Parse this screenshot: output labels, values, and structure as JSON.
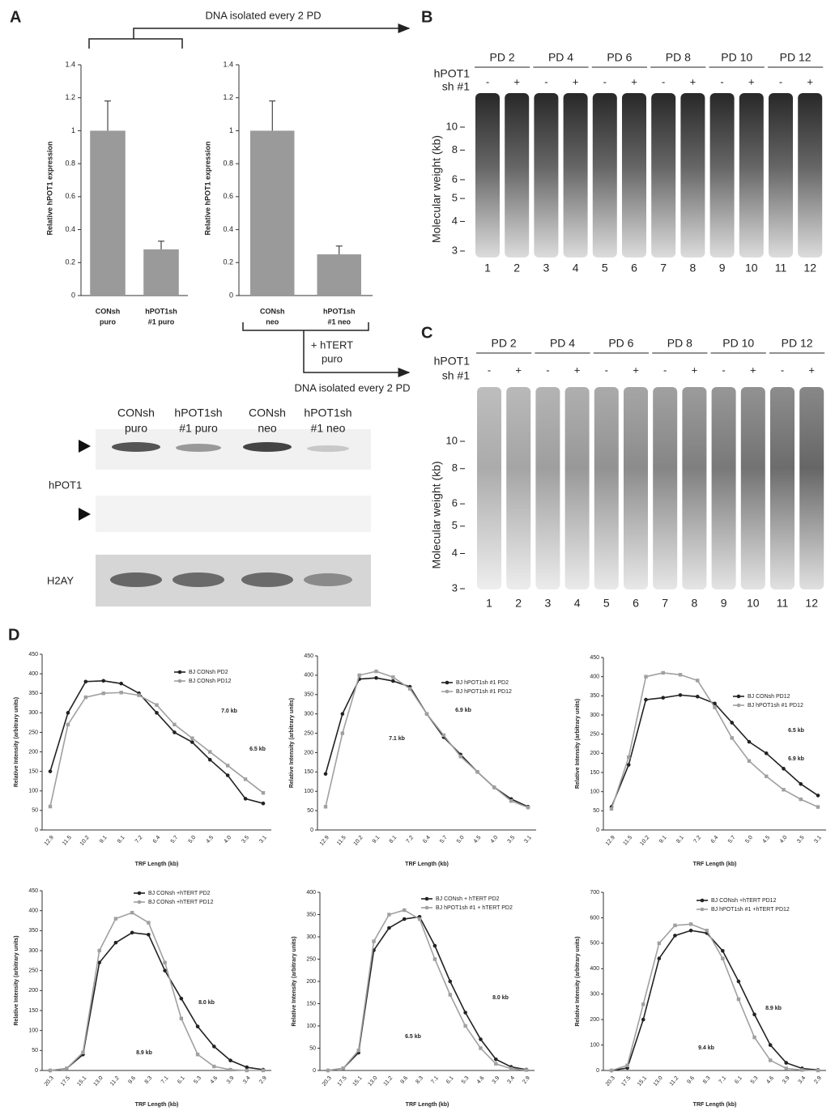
{
  "panel_labels": [
    "A",
    "B",
    "C",
    "D"
  ],
  "panel_a": {
    "top_arrow": "DNA isolated every 2 PD",
    "treatment": [
      "+ hTERT",
      "puro"
    ],
    "bottom_arrow": "DNA isolated every 2 PD"
  },
  "western": {
    "columns": [
      [
        "CONsh",
        "puro"
      ],
      [
        "hPOT1sh",
        "#1 puro"
      ],
      [
        "CONsh",
        "neo"
      ],
      [
        "hPOT1sh",
        "#1 neo"
      ]
    ],
    "rows": [
      "hPOT1",
      "H2AY"
    ]
  },
  "gels": [
    {
      "pd_labels": [
        "PD 2",
        "PD 4",
        "PD 6",
        "PD 8",
        "PD 10",
        "PD 12"
      ],
      "row_labels": [
        "hPOT1",
        "sh #1"
      ],
      "signs": [
        "-",
        "+"
      ],
      "lanes": [
        "1",
        "2",
        "3",
        "4",
        "5",
        "6",
        "7",
        "8",
        "9",
        "10",
        "11",
        "12"
      ],
      "axis_title": "Molecular weight (kb)",
      "markers": [
        10,
        8,
        6,
        5,
        4,
        3
      ]
    },
    {
      "pd_labels": [
        "PD 2",
        "PD 4",
        "PD 6",
        "PD 8",
        "PD 10",
        "PD 12"
      ],
      "row_labels": [
        "hPOT1",
        "sh #1"
      ],
      "signs": [
        "-",
        "+"
      ],
      "lanes": [
        "1",
        "2",
        "3",
        "4",
        "5",
        "6",
        "7",
        "8",
        "9",
        "10",
        "11",
        "12"
      ],
      "axis_title": "Molecular weight (kb)",
      "markers": [
        10,
        8,
        6,
        5,
        4,
        3
      ]
    }
  ],
  "chart_data": [
    {
      "type": "bar",
      "y_label": "Relative hPOT1 expression",
      "categories": [
        [
          "CONsh",
          "puro"
        ],
        [
          "hPOT1sh",
          "#1 puro"
        ]
      ],
      "values": [
        1,
        0.28
      ],
      "error": [
        0.18,
        0.05
      ],
      "color": "#9a9a9a",
      "ylim": [
        0,
        1.4
      ],
      "yticks": [
        0,
        0.2,
        0.4,
        0.6,
        0.8,
        1,
        1.2,
        1.4
      ]
    },
    {
      "type": "bar",
      "y_label": "Relative hPOT1 expression",
      "categories": [
        [
          "CONsh",
          "neo"
        ],
        [
          "hPOT1sh",
          "#1 neo"
        ]
      ],
      "values": [
        1,
        0.25
      ],
      "error": [
        0.18,
        0.05
      ],
      "color": "#9a9a9a",
      "ylim": [
        0,
        1.4
      ],
      "yticks": [
        0,
        0.2,
        0.4,
        0.6,
        0.8,
        1,
        1.2,
        1.4
      ]
    },
    {
      "type": "line",
      "y_label": "Relative Intensity (arbitrary units)",
      "x_label": "TRF Length (kb)",
      "categories": [
        "12.9",
        "11.5",
        "10.2",
        "9.1",
        "8.1",
        "7.2",
        "6.4",
        "5.7",
        "5.0",
        "4.5",
        "4.0",
        "3.5",
        "3.1"
      ],
      "ylim": [
        0,
        450
      ],
      "yticks": [
        0,
        50,
        100,
        150,
        200,
        250,
        300,
        350,
        400,
        450
      ],
      "annotations": [
        "7.0 kb",
        "6.5 kb"
      ],
      "series": [
        {
          "name": "BJ CONsh PD2",
          "color": "#222222",
          "values": [
            150,
            300,
            380,
            382,
            375,
            350,
            300,
            250,
            225,
            180,
            140,
            80,
            68
          ]
        },
        {
          "name": "BJ CONsh PD12",
          "color": "#a0a0a0",
          "values": [
            60,
            270,
            340,
            350,
            352,
            345,
            320,
            270,
            235,
            200,
            165,
            130,
            95
          ]
        }
      ]
    },
    {
      "type": "line",
      "y_label": "Relative Intensity (arbitrary units)",
      "x_label": "TRF Length (kb)",
      "categories": [
        "12.9",
        "11.5",
        "10.2",
        "9.1",
        "8.1",
        "7.2",
        "6.4",
        "5.7",
        "5.0",
        "4.5",
        "4.0",
        "3.5",
        "3.1"
      ],
      "ylim": [
        0,
        450
      ],
      "yticks": [
        0,
        50,
        100,
        150,
        200,
        250,
        300,
        350,
        400,
        450
      ],
      "annotations": [
        "7.1 kb",
        "6.9 kb"
      ],
      "series": [
        {
          "name": "BJ hPOT1sh #1 PD2",
          "color": "#222222",
          "values": [
            145,
            300,
            390,
            393,
            385,
            370,
            300,
            240,
            195,
            150,
            110,
            80,
            60
          ]
        },
        {
          "name": "BJ hPOT1sh #1 PD12",
          "color": "#a0a0a0",
          "values": [
            60,
            250,
            400,
            410,
            395,
            365,
            300,
            245,
            190,
            150,
            110,
            75,
            58
          ]
        }
      ]
    },
    {
      "type": "line",
      "y_label": "Relative Intensity (arbitrary units)",
      "x_label": "TRF Length (kb)",
      "categories": [
        "12.9",
        "11.5",
        "10.2",
        "9.1",
        "8.1",
        "7.2",
        "6.4",
        "5.7",
        "5.0",
        "4.5",
        "4.0",
        "3.5",
        "3.1"
      ],
      "ylim": [
        0,
        450
      ],
      "yticks": [
        0,
        50,
        100,
        150,
        200,
        250,
        300,
        350,
        400,
        450
      ],
      "annotations": [
        "6.5 kb",
        "6.9 kb"
      ],
      "series": [
        {
          "name": "BJ CONsh PD12",
          "color": "#222222",
          "values": [
            60,
            170,
            340,
            345,
            352,
            348,
            330,
            280,
            230,
            200,
            160,
            120,
            90
          ]
        },
        {
          "name": "BJ hPOT1sh #1 PD12",
          "color": "#a0a0a0",
          "values": [
            55,
            190,
            400,
            410,
            405,
            390,
            320,
            240,
            180,
            140,
            105,
            80,
            60
          ]
        }
      ]
    },
    {
      "type": "line",
      "y_label": "Relative Intensity (arbitrary units)",
      "x_label": "TRF Length (kb)",
      "categories": [
        "20.3",
        "17.5",
        "15.1",
        "13.0",
        "11.2",
        "9.6",
        "8.3",
        "7.1",
        "6.1",
        "5.3",
        "4.6",
        "3.9",
        "3.4",
        "2.9"
      ],
      "ylim": [
        0,
        450
      ],
      "yticks": [
        0,
        50,
        100,
        150,
        200,
        250,
        300,
        350,
        400,
        450
      ],
      "annotations": [
        "8.0 kb",
        "8.9 kb"
      ],
      "series": [
        {
          "name": "BJ CONsh +hTERT PD2",
          "color": "#222222",
          "values": [
            0,
            5,
            40,
            270,
            320,
            345,
            340,
            250,
            180,
            110,
            60,
            25,
            8,
            2
          ]
        },
        {
          "name": "BJ CONsh +hTERT PD12",
          "color": "#a0a0a0",
          "values": [
            0,
            5,
            45,
            300,
            380,
            395,
            370,
            270,
            130,
            40,
            10,
            2,
            0,
            0
          ]
        }
      ]
    },
    {
      "type": "line",
      "y_label": "Relative Intensity (arbitrary units)",
      "x_label": "TRF Length (kb)",
      "categories": [
        "20.3",
        "17.5",
        "15.1",
        "13.0",
        "11.2",
        "9.6",
        "8.3",
        "7.1",
        "6.1",
        "5.3",
        "4.6",
        "3.9",
        "3.4",
        "2.9"
      ],
      "ylim": [
        0,
        400
      ],
      "yticks": [
        0,
        50,
        100,
        150,
        200,
        250,
        300,
        350,
        400
      ],
      "annotations": [
        "8.0 kb",
        "6.5 kb"
      ],
      "series": [
        {
          "name": "BJ CONsh + hTERT PD2",
          "color": "#222222",
          "values": [
            0,
            5,
            40,
            270,
            320,
            340,
            345,
            280,
            200,
            130,
            70,
            25,
            8,
            2
          ]
        },
        {
          "name": "BJ hPOT1sh #1 + hTERT PD2",
          "color": "#a0a0a0",
          "values": [
            0,
            5,
            45,
            290,
            350,
            360,
            340,
            250,
            170,
            100,
            50,
            15,
            4,
            1
          ]
        }
      ]
    },
    {
      "type": "line",
      "y_label": "Relative Intensity (arbitrary units)",
      "x_label": "TRF Length (kb)",
      "categories": [
        "20.3",
        "17.5",
        "15.1",
        "13.0",
        "11.2",
        "9.6",
        "8.3",
        "7.1",
        "6.1",
        "5.3",
        "4.6",
        "3.9",
        "3.4",
        "2.9"
      ],
      "ylim": [
        0,
        700
      ],
      "yticks": [
        0,
        100,
        200,
        300,
        400,
        500,
        600,
        700
      ],
      "annotations": [
        "8.9 kb",
        "9.4 kb"
      ],
      "series": [
        {
          "name": "BJ CONsh +hTERT PD12",
          "color": "#222222",
          "values": [
            0,
            10,
            200,
            440,
            530,
            550,
            540,
            470,
            350,
            220,
            100,
            30,
            8,
            2
          ]
        },
        {
          "name": "BJ hPOT1sh #1 +hTERT PD12",
          "color": "#a0a0a0",
          "values": [
            0,
            20,
            260,
            500,
            570,
            575,
            550,
            440,
            280,
            130,
            40,
            8,
            2,
            0
          ]
        }
      ]
    }
  ]
}
